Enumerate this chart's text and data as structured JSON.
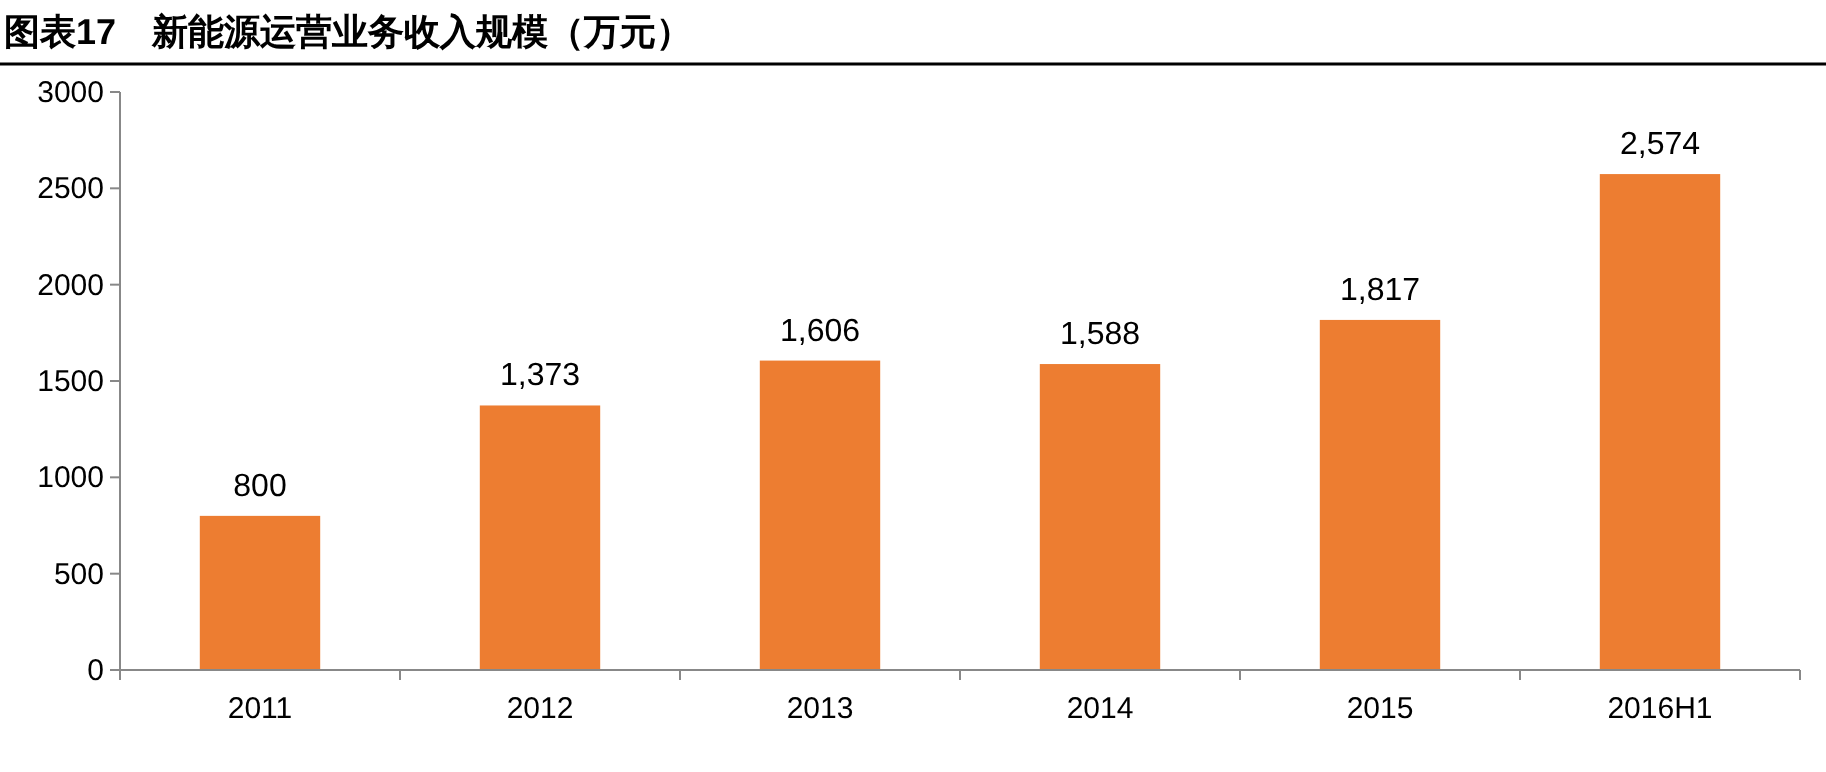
{
  "chart_data": {
    "type": "bar",
    "title": "图表17　新能源运营业务收入规模（万元）",
    "categories": [
      "2011",
      "2012",
      "2013",
      "2014",
      "2015",
      "2016H1"
    ],
    "values": [
      800,
      1373,
      1606,
      1588,
      1817,
      2574
    ],
    "value_labels": [
      "800",
      "1,373",
      "1,606",
      "1,588",
      "1,817",
      "2,574"
    ],
    "color": "#ed7d31",
    "ylim": [
      0,
      3000
    ],
    "yticks": [
      0,
      500,
      1000,
      1500,
      2000,
      2500,
      3000
    ],
    "grid": false
  }
}
